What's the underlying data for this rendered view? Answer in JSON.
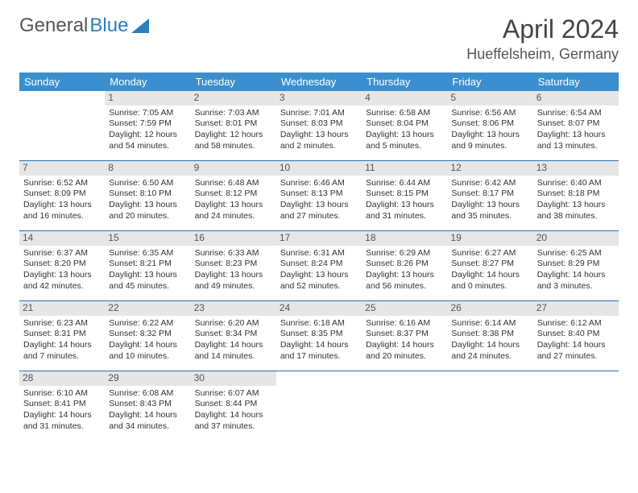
{
  "logo": {
    "part1": "General",
    "part2": "Blue"
  },
  "title": "April 2024",
  "location": "Hueffelsheim, Germany",
  "dow_labels": [
    "Sunday",
    "Monday",
    "Tuesday",
    "Wednesday",
    "Thursday",
    "Friday",
    "Saturday"
  ],
  "colors": {
    "header_bg": "#3b8fce",
    "row_border": "#2a6fa8",
    "daynum_bg": "#e6e6e6",
    "logo_blue": "#2a7fbf"
  },
  "typography": {
    "title_fontsize": 32,
    "location_fontsize": 18,
    "dow_fontsize": 13,
    "cell_fontsize": 10.5,
    "daynum_fontsize": 12
  },
  "weeks": [
    [
      {
        "n": "",
        "empty": true
      },
      {
        "n": "1",
        "sunrise": "Sunrise: 7:05 AM",
        "sunset": "Sunset: 7:59 PM",
        "day1": "Daylight: 12 hours",
        "day2": "and 54 minutes."
      },
      {
        "n": "2",
        "sunrise": "Sunrise: 7:03 AM",
        "sunset": "Sunset: 8:01 PM",
        "day1": "Daylight: 12 hours",
        "day2": "and 58 minutes."
      },
      {
        "n": "3",
        "sunrise": "Sunrise: 7:01 AM",
        "sunset": "Sunset: 8:03 PM",
        "day1": "Daylight: 13 hours",
        "day2": "and 2 minutes."
      },
      {
        "n": "4",
        "sunrise": "Sunrise: 6:58 AM",
        "sunset": "Sunset: 8:04 PM",
        "day1": "Daylight: 13 hours",
        "day2": "and 5 minutes."
      },
      {
        "n": "5",
        "sunrise": "Sunrise: 6:56 AM",
        "sunset": "Sunset: 8:06 PM",
        "day1": "Daylight: 13 hours",
        "day2": "and 9 minutes."
      },
      {
        "n": "6",
        "sunrise": "Sunrise: 6:54 AM",
        "sunset": "Sunset: 8:07 PM",
        "day1": "Daylight: 13 hours",
        "day2": "and 13 minutes."
      }
    ],
    [
      {
        "n": "7",
        "sunrise": "Sunrise: 6:52 AM",
        "sunset": "Sunset: 8:09 PM",
        "day1": "Daylight: 13 hours",
        "day2": "and 16 minutes."
      },
      {
        "n": "8",
        "sunrise": "Sunrise: 6:50 AM",
        "sunset": "Sunset: 8:10 PM",
        "day1": "Daylight: 13 hours",
        "day2": "and 20 minutes."
      },
      {
        "n": "9",
        "sunrise": "Sunrise: 6:48 AM",
        "sunset": "Sunset: 8:12 PM",
        "day1": "Daylight: 13 hours",
        "day2": "and 24 minutes."
      },
      {
        "n": "10",
        "sunrise": "Sunrise: 6:46 AM",
        "sunset": "Sunset: 8:13 PM",
        "day1": "Daylight: 13 hours",
        "day2": "and 27 minutes."
      },
      {
        "n": "11",
        "sunrise": "Sunrise: 6:44 AM",
        "sunset": "Sunset: 8:15 PM",
        "day1": "Daylight: 13 hours",
        "day2": "and 31 minutes."
      },
      {
        "n": "12",
        "sunrise": "Sunrise: 6:42 AM",
        "sunset": "Sunset: 8:17 PM",
        "day1": "Daylight: 13 hours",
        "day2": "and 35 minutes."
      },
      {
        "n": "13",
        "sunrise": "Sunrise: 6:40 AM",
        "sunset": "Sunset: 8:18 PM",
        "day1": "Daylight: 13 hours",
        "day2": "and 38 minutes."
      }
    ],
    [
      {
        "n": "14",
        "sunrise": "Sunrise: 6:37 AM",
        "sunset": "Sunset: 8:20 PM",
        "day1": "Daylight: 13 hours",
        "day2": "and 42 minutes."
      },
      {
        "n": "15",
        "sunrise": "Sunrise: 6:35 AM",
        "sunset": "Sunset: 8:21 PM",
        "day1": "Daylight: 13 hours",
        "day2": "and 45 minutes."
      },
      {
        "n": "16",
        "sunrise": "Sunrise: 6:33 AM",
        "sunset": "Sunset: 8:23 PM",
        "day1": "Daylight: 13 hours",
        "day2": "and 49 minutes."
      },
      {
        "n": "17",
        "sunrise": "Sunrise: 6:31 AM",
        "sunset": "Sunset: 8:24 PM",
        "day1": "Daylight: 13 hours",
        "day2": "and 52 minutes."
      },
      {
        "n": "18",
        "sunrise": "Sunrise: 6:29 AM",
        "sunset": "Sunset: 8:26 PM",
        "day1": "Daylight: 13 hours",
        "day2": "and 56 minutes."
      },
      {
        "n": "19",
        "sunrise": "Sunrise: 6:27 AM",
        "sunset": "Sunset: 8:27 PM",
        "day1": "Daylight: 14 hours",
        "day2": "and 0 minutes."
      },
      {
        "n": "20",
        "sunrise": "Sunrise: 6:25 AM",
        "sunset": "Sunset: 8:29 PM",
        "day1": "Daylight: 14 hours",
        "day2": "and 3 minutes."
      }
    ],
    [
      {
        "n": "21",
        "sunrise": "Sunrise: 6:23 AM",
        "sunset": "Sunset: 8:31 PM",
        "day1": "Daylight: 14 hours",
        "day2": "and 7 minutes."
      },
      {
        "n": "22",
        "sunrise": "Sunrise: 6:22 AM",
        "sunset": "Sunset: 8:32 PM",
        "day1": "Daylight: 14 hours",
        "day2": "and 10 minutes."
      },
      {
        "n": "23",
        "sunrise": "Sunrise: 6:20 AM",
        "sunset": "Sunset: 8:34 PM",
        "day1": "Daylight: 14 hours",
        "day2": "and 14 minutes."
      },
      {
        "n": "24",
        "sunrise": "Sunrise: 6:18 AM",
        "sunset": "Sunset: 8:35 PM",
        "day1": "Daylight: 14 hours",
        "day2": "and 17 minutes."
      },
      {
        "n": "25",
        "sunrise": "Sunrise: 6:16 AM",
        "sunset": "Sunset: 8:37 PM",
        "day1": "Daylight: 14 hours",
        "day2": "and 20 minutes."
      },
      {
        "n": "26",
        "sunrise": "Sunrise: 6:14 AM",
        "sunset": "Sunset: 8:38 PM",
        "day1": "Daylight: 14 hours",
        "day2": "and 24 minutes."
      },
      {
        "n": "27",
        "sunrise": "Sunrise: 6:12 AM",
        "sunset": "Sunset: 8:40 PM",
        "day1": "Daylight: 14 hours",
        "day2": "and 27 minutes."
      }
    ],
    [
      {
        "n": "28",
        "sunrise": "Sunrise: 6:10 AM",
        "sunset": "Sunset: 8:41 PM",
        "day1": "Daylight: 14 hours",
        "day2": "and 31 minutes."
      },
      {
        "n": "29",
        "sunrise": "Sunrise: 6:08 AM",
        "sunset": "Sunset: 8:43 PM",
        "day1": "Daylight: 14 hours",
        "day2": "and 34 minutes."
      },
      {
        "n": "30",
        "sunrise": "Sunrise: 6:07 AM",
        "sunset": "Sunset: 8:44 PM",
        "day1": "Daylight: 14 hours",
        "day2": "and 37 minutes."
      },
      {
        "n": "",
        "empty": true
      },
      {
        "n": "",
        "empty": true
      },
      {
        "n": "",
        "empty": true
      },
      {
        "n": "",
        "empty": true
      }
    ]
  ]
}
